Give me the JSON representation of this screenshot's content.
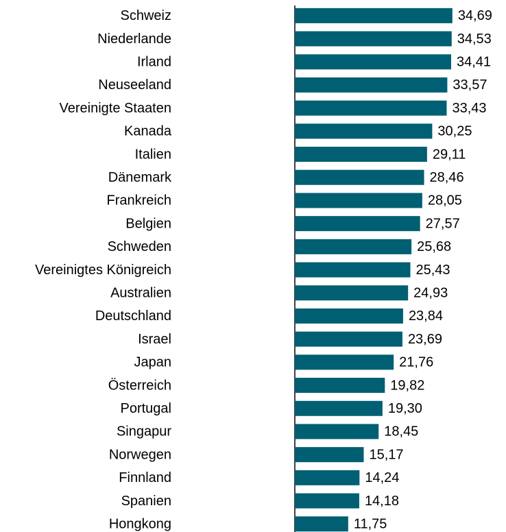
{
  "chart_data": {
    "type": "bar",
    "orientation": "horizontal",
    "categories": [
      "Schweiz",
      "Niederlande",
      "Irland",
      "Neuseeland",
      "Vereinigte Staaten",
      "Kanada",
      "Italien",
      "Dänemark",
      "Frankreich",
      "Belgien",
      "Schweden",
      "Vereinigtes Königreich",
      "Australien",
      "Deutschland",
      "Israel",
      "Japan",
      "Österreich",
      "Portugal",
      "Singapur",
      "Norwegen",
      "Finnland",
      "Spanien",
      "Hongkong"
    ],
    "values": [
      34.69,
      34.53,
      34.41,
      33.57,
      33.43,
      30.25,
      29.11,
      28.46,
      28.05,
      27.57,
      25.68,
      25.43,
      24.93,
      23.84,
      23.69,
      21.76,
      19.82,
      19.3,
      18.45,
      15.17,
      14.24,
      14.18,
      11.75
    ],
    "value_labels": [
      "34,69",
      "34,53",
      "34,41",
      "33,57",
      "33,43",
      "30,25",
      "29,11",
      "28,46",
      "28,05",
      "27,57",
      "25,68",
      "25,43",
      "24,93",
      "23,84",
      "23,69",
      "21,76",
      "19,82",
      "19,30",
      "18,45",
      "15,17",
      "14,24",
      "14,18",
      "11,75"
    ],
    "color": "#005f72",
    "xlim": [
      0,
      40
    ]
  }
}
